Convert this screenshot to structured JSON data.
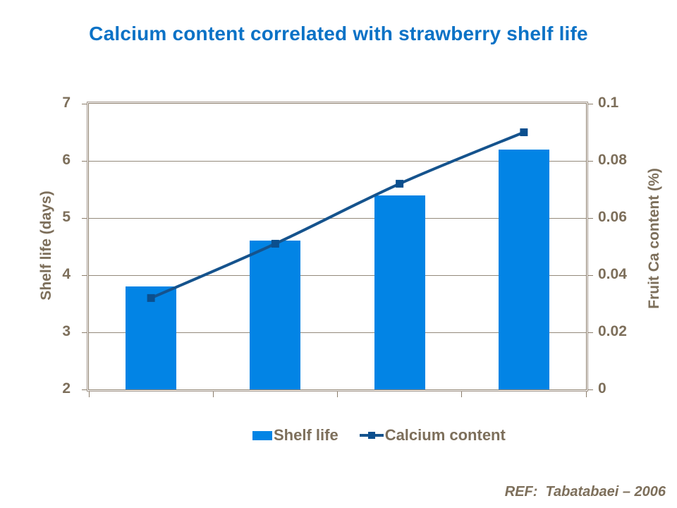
{
  "title": "Calcium content correlated with strawberry shelf life",
  "ref_text": "REF:  Tabatabaei – 2006",
  "colors": {
    "title": "#0b72c6",
    "bar": "#0284e5",
    "line": "#15538d",
    "marker": "#0b4f8e",
    "axis_text": "#7d6f5b",
    "axis_line": "#8b7d6b",
    "axis_line_light": "#a2968a",
    "grid": "#948a7c",
    "background": "#ffffff"
  },
  "chart_data": {
    "type": "bar",
    "combo": [
      "bar",
      "line"
    ],
    "title": "Calcium content correlated with strawberry shelf life",
    "categories": [
      "",
      "",
      "",
      ""
    ],
    "series": [
      {
        "name": "Shelf life",
        "type": "bar",
        "axis": "left",
        "values": [
          3.8,
          4.6,
          5.4,
          6.2
        ],
        "color": "#0284e5"
      },
      {
        "name": "Calcium content",
        "type": "line",
        "axis": "right",
        "values": [
          0.032,
          0.051,
          0.072,
          0.09
        ],
        "color": "#15538d",
        "marker": "square",
        "marker_color": "#0b4f8e"
      }
    ],
    "axes": {
      "left": {
        "label": "Shelf life (days)",
        "range": [
          2,
          7
        ],
        "ticks": [
          "7",
          "6",
          "5",
          "4",
          "3",
          "2"
        ]
      },
      "right": {
        "label": "Fruit Ca content (%)",
        "range": [
          0,
          0.1
        ],
        "ticks": [
          "0.1",
          "0.08",
          "0.06",
          "0.04",
          "0.02",
          "0"
        ]
      }
    },
    "grid": true,
    "legend_position": "bottom"
  }
}
